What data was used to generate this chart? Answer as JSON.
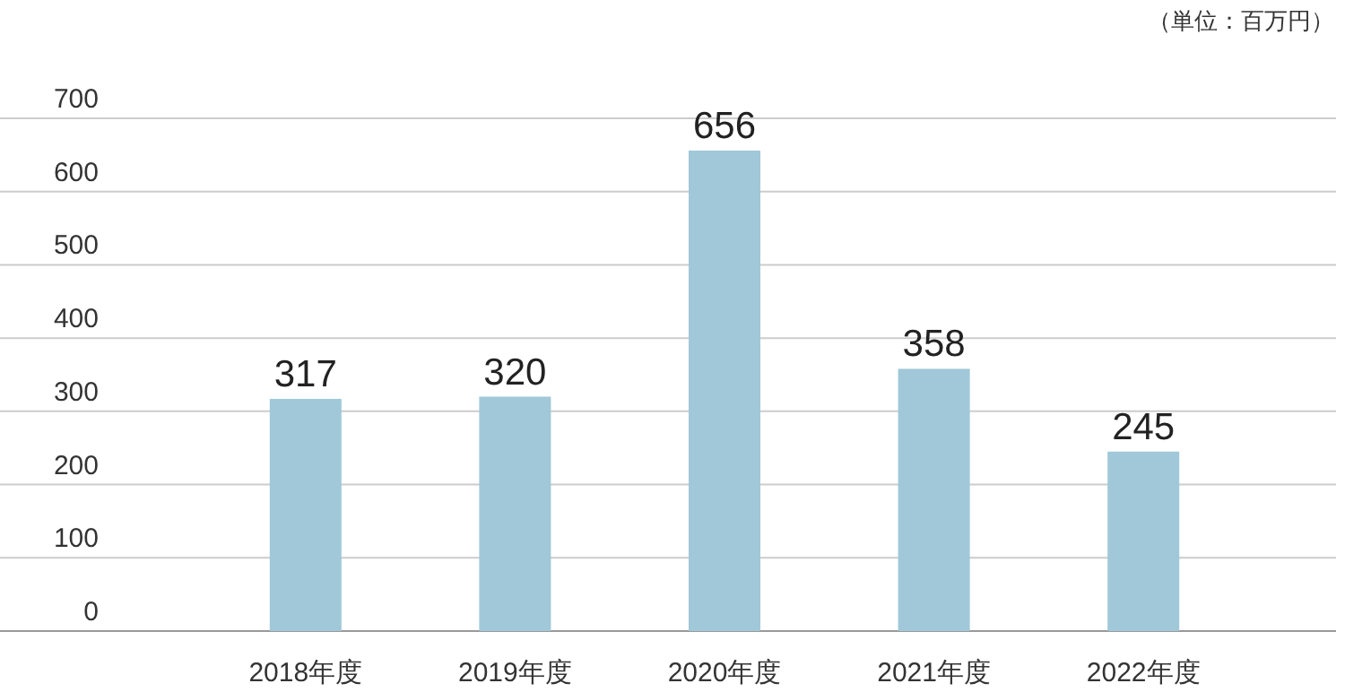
{
  "chart_data": {
    "type": "bar",
    "categories": [
      "2018年度",
      "2019年度",
      "2020年度",
      "2021年度",
      "2022年度"
    ],
    "values": [
      317,
      320,
      656,
      358,
      245
    ],
    "color": "#a0c8d8",
    "ylim": [
      0,
      700
    ],
    "yticks": [
      0,
      100,
      200,
      300,
      400,
      500,
      600,
      700
    ],
    "grid": "y",
    "data_labels": true,
    "annotations": [
      "（単位：百万円）"
    ]
  }
}
